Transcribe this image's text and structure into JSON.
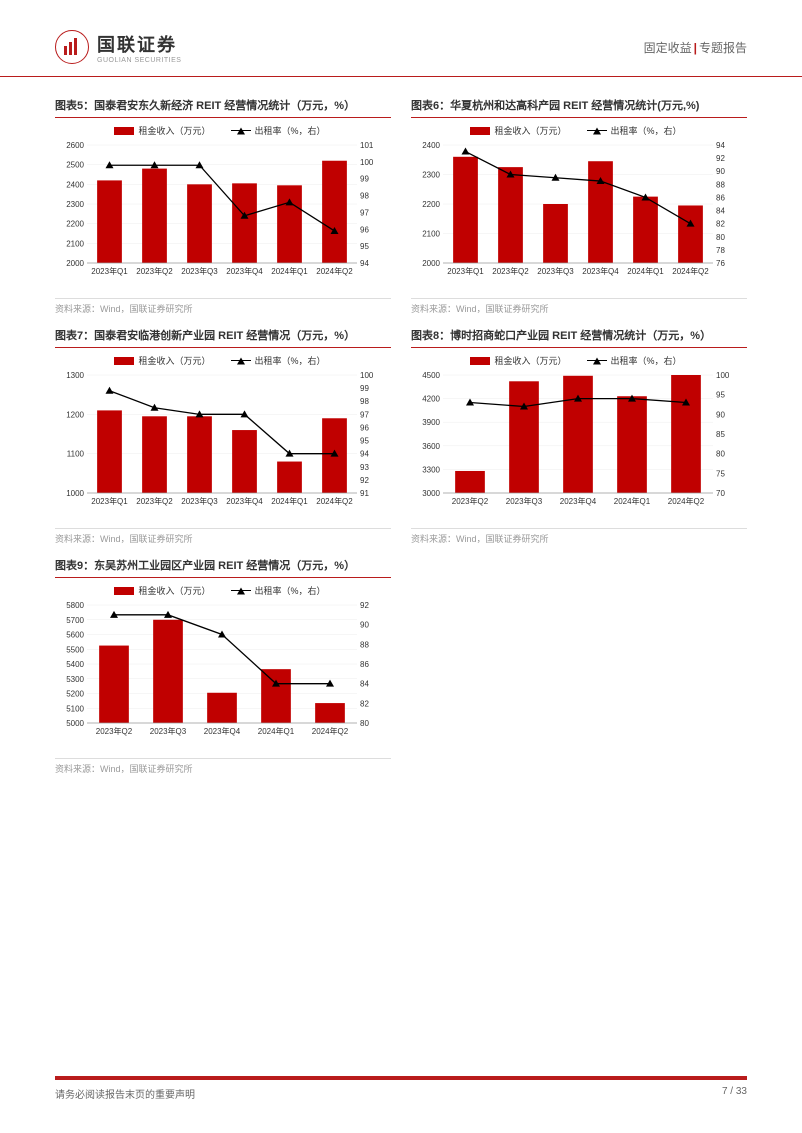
{
  "header": {
    "company_ch": "国联证券",
    "company_en": "GUOLIAN SECURITIES",
    "doc_category": "固定收益",
    "doc_type": "专题报告"
  },
  "footer": {
    "disclaimer": "请务必阅读报告末页的重要声明",
    "page": "7 / 33"
  },
  "common": {
    "legend_bar": "租金收入（万元）",
    "legend_line": "出租率（%，右）",
    "source": "资料来源：Wind，国联证券研究所",
    "bar_color": "#c00000",
    "line_color": "#000000",
    "grid_color": "#eeeeee",
    "bg_color": "#ffffff"
  },
  "charts": [
    {
      "id": "c5",
      "title": "图表5：国泰君安东久新经济 REIT 经营情况统计（万元，%）",
      "categories": [
        "2023年Q1",
        "2023年Q2",
        "2023年Q3",
        "2023年Q4",
        "2024年Q1",
        "2024年Q2"
      ],
      "bar_values": [
        2420,
        2480,
        2400,
        2405,
        2395,
        2520
      ],
      "line_values": [
        99.8,
        99.8,
        99.8,
        96.8,
        97.6,
        95.9
      ],
      "y1_min": 2000,
      "y1_max": 2600,
      "y1_step": 100,
      "y2_min": 94,
      "y2_max": 101,
      "y2_step": 1
    },
    {
      "id": "c6",
      "title": "图表6：华夏杭州和达高科产园 REIT 经营情况统计(万元,%)",
      "categories": [
        "2023年Q1",
        "2023年Q2",
        "2023年Q3",
        "2023年Q4",
        "2024年Q1",
        "2024年Q2"
      ],
      "bar_values": [
        2360,
        2325,
        2200,
        2345,
        2225,
        2195
      ],
      "line_values": [
        93,
        89.5,
        89,
        88.5,
        86,
        82
      ],
      "y1_min": 2000,
      "y1_max": 2400,
      "y1_step": 100,
      "y2_min": 76,
      "y2_max": 94,
      "y2_step": 2
    },
    {
      "id": "c7",
      "title": "图表7：国泰君安临港创新产业园 REIT 经营情况（万元，%）",
      "categories": [
        "2023年Q1",
        "2023年Q2",
        "2023年Q3",
        "2023年Q4",
        "2024年Q1",
        "2024年Q2"
      ],
      "bar_values": [
        1210,
        1195,
        1195,
        1160,
        1080,
        1190
      ],
      "line_values": [
        98.8,
        97.5,
        97,
        97,
        94,
        94
      ],
      "y1_min": 1000,
      "y1_max": 1300,
      "y1_step": 100,
      "y2_min": 91,
      "y2_max": 100,
      "y2_step": 1
    },
    {
      "id": "c8",
      "title": "图表8：博时招商蛇口产业园 REIT 经营情况统计（万元，%）",
      "categories": [
        "2023年Q2",
        "2023年Q3",
        "2023年Q4",
        "2024年Q1",
        "2024年Q2"
      ],
      "bar_values": [
        3280,
        4420,
        4490,
        4230,
        4500
      ],
      "line_values": [
        93,
        92,
        94,
        94,
        93
      ],
      "y1_min": 3000,
      "y1_max": 4500,
      "y1_step": 300,
      "y2_min": 70,
      "y2_max": 100,
      "y2_step": 5
    },
    {
      "id": "c9",
      "title": "图表9：东吴苏州工业园区产业园 REIT 经营情况（万元，%）",
      "categories": [
        "2023年Q2",
        "2023年Q3",
        "2023年Q4",
        "2024年Q1",
        "2024年Q2"
      ],
      "bar_values": [
        5525,
        5700,
        5205,
        5365,
        5135
      ],
      "line_values": [
        91,
        91,
        89,
        84,
        84
      ],
      "y1_min": 5000,
      "y1_max": 5800,
      "y1_step": 100,
      "y2_min": 80,
      "y2_max": 92,
      "y2_step": 2
    }
  ]
}
